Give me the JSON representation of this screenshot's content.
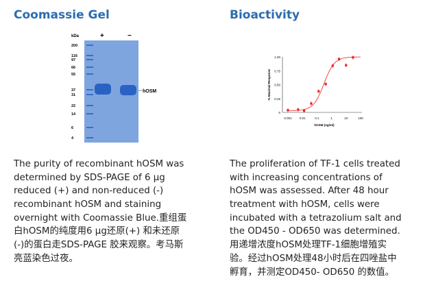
{
  "left": {
    "title": "Coomassie Gel",
    "gel": {
      "unit_label": "kDa",
      "lanes": [
        "+",
        "−"
      ],
      "markers": [
        "200",
        "116",
        "97",
        "66",
        "55",
        "37",
        "31",
        "22",
        "14",
        "6",
        "4"
      ],
      "band_label": "hOSM",
      "colors": {
        "gel": "#7aa1dc",
        "band": "#2a62c4"
      }
    },
    "lines": [
      "The purity of recombinant hOSM was",
      "determined by SDS-PAGE of 6 µg",
      "reduced (+) and non-reduced (-)",
      "recombinant hOSM and staining",
      "overnight with Coomassie Blue.重组蛋",
      "白hOSM的纯度用6 µg还原(+) 和未还原",
      "(-)的蛋白走SDS-PAGE 胶来观察。考马斯",
      "亮蓝染色过夜。"
    ]
  },
  "right": {
    "title": "Bioactivity",
    "lines": [
      "The proliferation of TF-1 cells treated",
      "with increasing concentrations of",
      "hOSM was assessed. After 48 hour",
      "treatment with hOSM, cells were",
      "incubated with a tetrazolium salt and",
      "the OD450 - OD650 was determined.",
      "用递增浓度hOSM处理TF-1细胞增殖实",
      "验。经过hOSM处理48小时后在四唑盐中",
      "孵育，并测定OD450- OD650 的数值。"
    ]
  },
  "chart_data": {
    "type": "scatter",
    "xlabel": "hOSM (ng/ml)",
    "ylabel": "% Maximal Response",
    "x_scale": "log",
    "xlim": [
      0.001,
      100
    ],
    "ylim": [
      0,
      1
    ],
    "x_ticks": [
      "0.001",
      "0.01",
      "0.1",
      "1",
      "10",
      "100"
    ],
    "y_ticks": [
      "0",
      "0.25",
      "0.50",
      "0.75",
      "1.00"
    ],
    "color": "#e8231f",
    "x": [
      0.001,
      0.005,
      0.013,
      0.04,
      0.13,
      0.4,
      1.2,
      3.3,
      10,
      30
    ],
    "y": [
      0.04,
      0.05,
      0.03,
      0.16,
      0.38,
      0.51,
      0.84,
      0.96,
      0.85,
      0.99
    ],
    "fit": "sigmoid"
  }
}
